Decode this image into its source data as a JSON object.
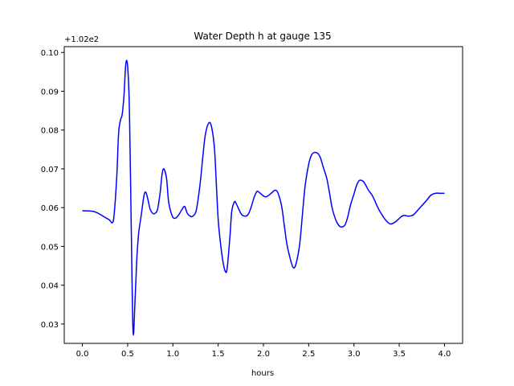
{
  "chart_data": {
    "type": "line",
    "title": "Water Depth h at gauge 135",
    "xlabel": "hours",
    "ylabel": "",
    "offset_label": "+1.02e2",
    "xlim": [
      -0.2,
      4.2
    ],
    "ylim": [
      0.025,
      0.1015
    ],
    "xticks": [
      0.0,
      0.5,
      1.0,
      1.5,
      2.0,
      2.5,
      3.0,
      3.5,
      4.0
    ],
    "xtick_labels": [
      "0.0",
      "0.5",
      "1.0",
      "1.5",
      "2.0",
      "2.5",
      "3.0",
      "3.5",
      "4.0"
    ],
    "yticks": [
      0.03,
      0.04,
      0.05,
      0.06,
      0.07,
      0.08,
      0.09,
      0.1
    ],
    "ytick_labels": [
      "0.03",
      "0.04",
      "0.05",
      "0.06",
      "0.07",
      "0.08",
      "0.09",
      "0.10"
    ],
    "grid": false,
    "series": [
      {
        "name": "",
        "color": "#0000ff",
        "x": [
          0.0,
          0.1,
          0.15,
          0.2,
          0.25,
          0.3,
          0.33,
          0.35,
          0.38,
          0.4,
          0.42,
          0.44,
          0.46,
          0.48,
          0.5,
          0.52,
          0.54,
          0.56,
          0.58,
          0.6,
          0.62,
          0.65,
          0.68,
          0.7,
          0.72,
          0.75,
          0.78,
          0.8,
          0.83,
          0.86,
          0.88,
          0.9,
          0.93,
          0.95,
          0.97,
          1.0,
          1.03,
          1.06,
          1.1,
          1.13,
          1.16,
          1.2,
          1.23,
          1.26,
          1.3,
          1.33,
          1.36,
          1.4,
          1.43,
          1.46,
          1.48,
          1.5,
          1.52,
          1.55,
          1.58,
          1.6,
          1.63,
          1.65,
          1.68,
          1.7,
          1.73,
          1.76,
          1.8,
          1.83,
          1.86,
          1.9,
          1.93,
          1.96,
          2.0,
          2.03,
          2.06,
          2.1,
          2.13,
          2.16,
          2.2,
          2.23,
          2.26,
          2.3,
          2.33,
          2.36,
          2.4,
          2.43,
          2.46,
          2.5,
          2.53,
          2.56,
          2.6,
          2.63,
          2.66,
          2.7,
          2.73,
          2.76,
          2.8,
          2.83,
          2.86,
          2.9,
          2.93,
          2.96,
          3.0,
          3.03,
          3.06,
          3.1,
          3.13,
          3.16,
          3.2,
          3.23,
          3.26,
          3.3,
          3.35,
          3.4,
          3.45,
          3.5,
          3.53,
          3.56,
          3.6,
          3.63,
          3.66,
          3.7,
          3.75,
          3.8,
          3.85,
          3.9,
          3.95,
          4.0
        ],
        "y": [
          0.0592,
          0.0591,
          0.0588,
          0.0582,
          0.0575,
          0.0568,
          0.0561,
          0.058,
          0.068,
          0.079,
          0.0825,
          0.084,
          0.089,
          0.097,
          0.0965,
          0.085,
          0.055,
          0.028,
          0.035,
          0.046,
          0.053,
          0.058,
          0.063,
          0.064,
          0.0625,
          0.0595,
          0.0585,
          0.0585,
          0.0595,
          0.064,
          0.0685,
          0.07,
          0.0675,
          0.062,
          0.0595,
          0.0575,
          0.0573,
          0.058,
          0.0595,
          0.0603,
          0.0585,
          0.0577,
          0.058,
          0.0595,
          0.066,
          0.073,
          0.079,
          0.0819,
          0.0805,
          0.075,
          0.066,
          0.057,
          0.052,
          0.0465,
          0.0435,
          0.0445,
          0.0525,
          0.059,
          0.0615,
          0.061,
          0.0595,
          0.0582,
          0.0578,
          0.0582,
          0.0598,
          0.0628,
          0.0642,
          0.0638,
          0.063,
          0.0628,
          0.0632,
          0.064,
          0.0645,
          0.0638,
          0.0605,
          0.0555,
          0.0505,
          0.0465,
          0.0445,
          0.0455,
          0.0505,
          0.058,
          0.0655,
          0.0712,
          0.0735,
          0.0742,
          0.074,
          0.0728,
          0.0705,
          0.0675,
          0.0638,
          0.0598,
          0.0568,
          0.0555,
          0.055,
          0.0555,
          0.0575,
          0.0605,
          0.0635,
          0.0658,
          0.067,
          0.0668,
          0.0658,
          0.0645,
          0.0632,
          0.0618,
          0.0602,
          0.0585,
          0.0568,
          0.0558,
          0.0562,
          0.0572,
          0.0578,
          0.058,
          0.0578,
          0.0579,
          0.0582,
          0.0592,
          0.0605,
          0.0618,
          0.0632,
          0.0637,
          0.0637,
          0.0637
        ]
      }
    ]
  }
}
